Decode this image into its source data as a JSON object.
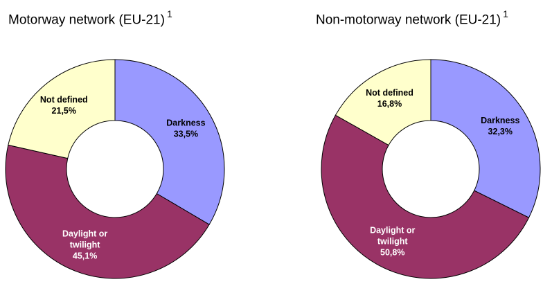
{
  "chart_data": [
    {
      "type": "pie",
      "variant": "donut",
      "title": "Motorway network (EU-21)",
      "title_footnote": "1",
      "categories": [
        "Darkness",
        "Daylight or twilight",
        "Not defined"
      ],
      "values": [
        33.5,
        45.1,
        21.5
      ],
      "value_labels": [
        "33,5%",
        "45,1%",
        "21,5%"
      ],
      "label_lines": [
        [
          "Darkness"
        ],
        [
          "Daylight or",
          "twilight"
        ],
        [
          "Not defined"
        ]
      ],
      "colors": [
        "#9999FF",
        "#993366",
        "#FFFFCC"
      ]
    },
    {
      "type": "pie",
      "variant": "donut",
      "title": "Non-motorway network (EU-21)",
      "title_footnote": "1",
      "categories": [
        "Darkness",
        "Daylight or twilight",
        "Not defined"
      ],
      "values": [
        32.3,
        50.8,
        16.8
      ],
      "value_labels": [
        "32,3%",
        "50,8%",
        "16,8%"
      ],
      "label_lines": [
        [
          "Darkness"
        ],
        [
          "Daylight or",
          "twilight"
        ],
        [
          "Not defined"
        ]
      ],
      "colors": [
        "#9999FF",
        "#993366",
        "#FFFFCC"
      ]
    }
  ]
}
